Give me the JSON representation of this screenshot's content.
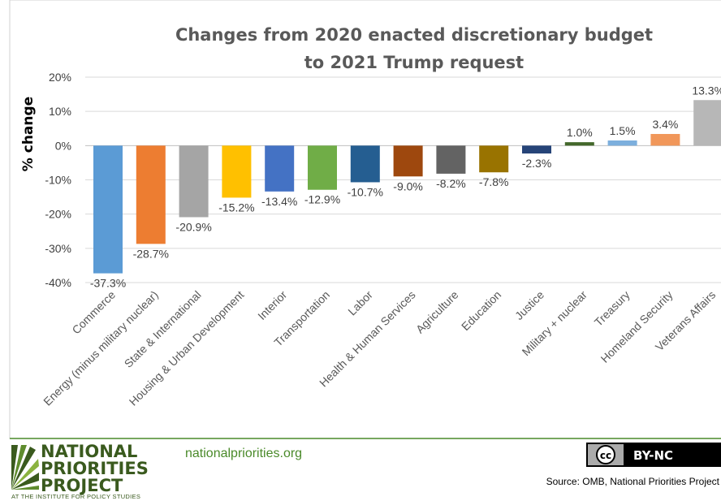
{
  "chart_data": {
    "type": "bar",
    "title_lines": [
      "Changes from 2020 enacted discretionary  budget",
      "to 2021 Trump request"
    ],
    "ylabel": "% change",
    "ylim": [
      -40,
      20
    ],
    "yticks": [
      "20%",
      "10%",
      "0%",
      "-10%",
      "-20%",
      "-30%",
      "-40%"
    ],
    "ytick_values": [
      20,
      10,
      0,
      -10,
      -20,
      -30,
      -40
    ],
    "grid": true,
    "categories": [
      "Commerce",
      "Energy (minus military nuclear)",
      "State & International",
      "Housing & Urban Development",
      "Interior",
      "Transportation",
      "Labor",
      "Health & Human Services",
      "Agriculture",
      "Education",
      "Justice",
      "Military + nuclear",
      "Treasury",
      "Homeland Security",
      "Veterans Affairs"
    ],
    "values": [
      -37.3,
      -28.7,
      -20.9,
      -15.2,
      -13.4,
      -12.9,
      -10.7,
      -9.0,
      -8.2,
      -7.8,
      -2.3,
      1.0,
      1.5,
      3.4,
      13.3
    ],
    "data_labels": [
      "-37.3%",
      "-28.7%",
      "-20.9%",
      "-15.2%",
      "-13.4%",
      "-12.9%",
      "-10.7%",
      "-9.0%",
      "-8.2%",
      "-7.8%",
      "-2.3%",
      "1.0%",
      "1.5%",
      "3.4%",
      "13.3%"
    ],
    "colors": [
      "#5b9bd5",
      "#ed7d31",
      "#a5a5a5",
      "#ffc000",
      "#4472c4",
      "#70ad47",
      "#255e91",
      "#9e480e",
      "#636363",
      "#997300",
      "#264478",
      "#43682b",
      "#7cafdd",
      "#f1975a",
      "#b7b7b7"
    ]
  },
  "footer": {
    "logo_lines": [
      "NATIONAL",
      "PRIORITIES",
      "PROJECT"
    ],
    "logo_tagline": "AT THE INSTITUTE FOR POLICY STUDIES",
    "website": "nationalpriorities.org",
    "license_cc": "cc",
    "license_label": "BY-NC",
    "source": "Source: OMB, National Priorities Project",
    "accent_color": "#4a8a2a"
  }
}
